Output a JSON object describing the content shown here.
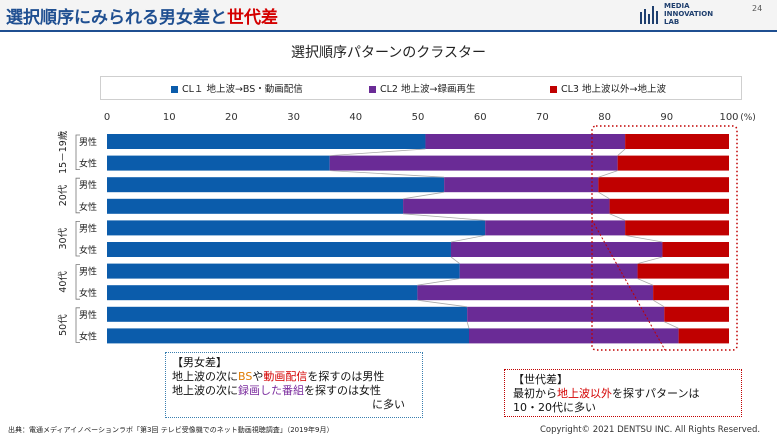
{
  "header": {
    "title_main": "選択順序にみられる男女差と",
    "title_accent": "世代差",
    "logo_text": "MEDIA\nINNOVATION\nLAB",
    "page_number": "24"
  },
  "colors": {
    "cl1": "#0b5cab",
    "cl2": "#6a2b96",
    "cl3": "#c00000",
    "header_blue": "#1f4f91",
    "accent_red": "#d40000"
  },
  "chart_data": {
    "type": "bar",
    "orientation": "horizontal",
    "stacked": true,
    "title": "選択順序パターンのクラスター",
    "unit_label": "(%)",
    "xlim": [
      0,
      100
    ],
    "xticks": [
      0,
      10,
      20,
      30,
      40,
      50,
      60,
      70,
      80,
      90,
      100
    ],
    "legend_position": "top",
    "groups": [
      "15－19歳",
      "20代",
      "30代",
      "40代",
      "50代"
    ],
    "categories": [
      "男性",
      "女性",
      "男性",
      "女性",
      "男性",
      "女性",
      "男性",
      "女性",
      "男性",
      "女性"
    ],
    "series": [
      {
        "name": "CL１ 地上波→BS・動画配信",
        "values": [
          51.2,
          35.8,
          54.2,
          47.6,
          60.8,
          55.3,
          56.7,
          49.9,
          57.9,
          58.2
        ]
      },
      {
        "name": "CL2 地上波→録画再生",
        "values": [
          32.1,
          46.3,
          24.8,
          33.2,
          22.5,
          34.0,
          28.6,
          37.9,
          31.7,
          33.7
        ]
      },
      {
        "name": "CL3 地上波以外→地上波",
        "values": [
          16.7,
          17.9,
          21.0,
          19.2,
          16.7,
          10.7,
          14.7,
          12.2,
          10.4,
          8.1
        ]
      }
    ]
  },
  "callouts": {
    "gender": {
      "heading": "【男女差】",
      "line1_a": "地上波の次に",
      "line1_bs": "BS",
      "line1_b": "や",
      "line1_stream": "動画配信",
      "line1_c": "を探すのは男性",
      "line2_a": "地上波の次に",
      "line2_rec": "録画した番組",
      "line2_b": "を探すのは女性",
      "line3": "に多い"
    },
    "generation": {
      "heading": "【世代差】",
      "line1_a": "最初から",
      "line1_non": "地上波以外",
      "line1_b": "を探すパターンは",
      "line2": "10・20代に多い"
    }
  },
  "footer": {
    "source": "出典：電通メディアイノベーションラボ「第3回 テレビ受像機でのネット動画視聴調査」（2019年9月）",
    "copyright": "Copyright© 2021 DENTSU INC. All Rights Reserved."
  }
}
